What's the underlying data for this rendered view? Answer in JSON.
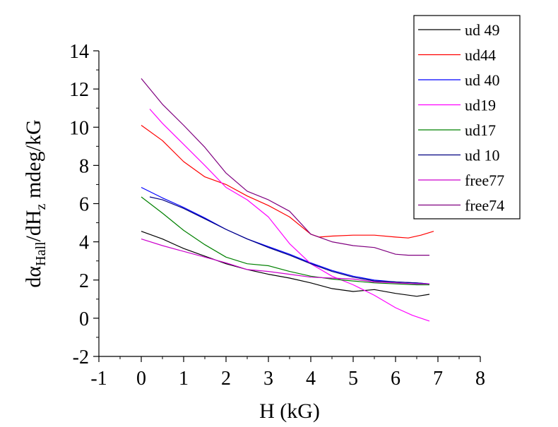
{
  "chart_data": {
    "type": "line",
    "xlabel": "H (kG)",
    "ylabel": {
      "parts": [
        "dα",
        "Hall",
        "/dH",
        "z",
        " mdeg/kG"
      ],
      "text": "dαHall/dHz mdeg/kG"
    },
    "xlim": [
      -1,
      8
    ],
    "ylim": [
      -2,
      14
    ],
    "x_ticks": [
      -1,
      0,
      1,
      2,
      3,
      4,
      5,
      6,
      7,
      8
    ],
    "y_ticks": [
      -2,
      0,
      2,
      4,
      6,
      8,
      10,
      12,
      14
    ],
    "grid": false,
    "legend_position": "top-right",
    "series": [
      {
        "name": "ud 49",
        "color": "#000000",
        "x": [
          0,
          0.5,
          1,
          1.5,
          2,
          2.5,
          3,
          3.5,
          4,
          4.5,
          5,
          5.5,
          6,
          6.5,
          6.8
        ],
        "y": [
          4.55,
          4.15,
          3.65,
          3.25,
          2.85,
          2.55,
          2.3,
          2.1,
          1.85,
          1.55,
          1.4,
          1.5,
          1.3,
          1.15,
          1.25
        ]
      },
      {
        "name": "ud44",
        "color": "#ff0000",
        "x": [
          0,
          0.5,
          1,
          1.5,
          2,
          2.5,
          3,
          3.5,
          4,
          4.2,
          4.5,
          5,
          5.5,
          6,
          6.3,
          6.6,
          6.9
        ],
        "y": [
          10.1,
          9.3,
          8.2,
          7.4,
          7.0,
          6.4,
          5.9,
          5.3,
          4.4,
          4.25,
          4.3,
          4.35,
          4.35,
          4.25,
          4.2,
          4.35,
          4.55
        ]
      },
      {
        "name": "ud 40",
        "color": "#0000ff",
        "x": [
          0,
          0.5,
          1,
          1.5,
          2,
          2.5,
          3,
          3.5,
          4,
          4.5,
          5,
          5.5,
          6,
          6.5,
          6.8
        ],
        "y": [
          6.85,
          6.3,
          5.8,
          5.25,
          4.65,
          4.15,
          3.75,
          3.35,
          2.9,
          2.5,
          2.2,
          2.0,
          1.9,
          1.85,
          1.8
        ]
      },
      {
        "name": "ud19",
        "color": "#ff00ff",
        "x": [
          0.2,
          0.5,
          1,
          1.5,
          2,
          2.5,
          3,
          3.5,
          4,
          4.5,
          5,
          5.5,
          6,
          6.4,
          6.8
        ],
        "y": [
          10.95,
          10.2,
          9.1,
          8.0,
          6.85,
          6.2,
          5.3,
          3.9,
          2.85,
          2.2,
          1.75,
          1.2,
          0.55,
          0.15,
          -0.15
        ]
      },
      {
        "name": "ud17",
        "color": "#008000",
        "x": [
          0,
          0.5,
          1,
          1.5,
          2,
          2.5,
          3,
          3.5,
          4,
          4.5,
          5,
          5.5,
          6,
          6.5,
          6.8
        ],
        "y": [
          6.35,
          5.5,
          4.6,
          3.85,
          3.2,
          2.85,
          2.75,
          2.45,
          2.2,
          2.05,
          1.95,
          1.85,
          1.8,
          1.75,
          1.75
        ]
      },
      {
        "name": "ud 10",
        "color": "#000080",
        "x": [
          0.2,
          0.5,
          1,
          1.5,
          2,
          2.5,
          3,
          3.5,
          4,
          4.5,
          5,
          5.5,
          6,
          6.5,
          6.8
        ],
        "y": [
          6.35,
          6.2,
          5.75,
          5.2,
          4.65,
          4.15,
          3.7,
          3.3,
          2.85,
          2.45,
          2.15,
          1.95,
          1.9,
          1.85,
          1.8
        ]
      },
      {
        "name": "free77",
        "color": "#cc00cc",
        "x": [
          0,
          0.5,
          1,
          1.5,
          2,
          2.5,
          3,
          3.5,
          4,
          4.5,
          5,
          5.5,
          6,
          6.5,
          6.8
        ],
        "y": [
          4.15,
          3.8,
          3.5,
          3.2,
          2.9,
          2.55,
          2.45,
          2.3,
          2.15,
          2.1,
          2.05,
          1.9,
          1.85,
          1.8,
          1.8
        ]
      },
      {
        "name": "free74",
        "color": "#800080",
        "x": [
          0,
          0.5,
          1,
          1.5,
          2,
          2.5,
          3,
          3.5,
          4,
          4.5,
          5,
          5.5,
          6,
          6.3,
          6.8
        ],
        "y": [
          12.55,
          11.2,
          10.1,
          8.95,
          7.6,
          6.65,
          6.2,
          5.6,
          4.4,
          4.0,
          3.8,
          3.7,
          3.35,
          3.3,
          3.3
        ]
      }
    ]
  }
}
